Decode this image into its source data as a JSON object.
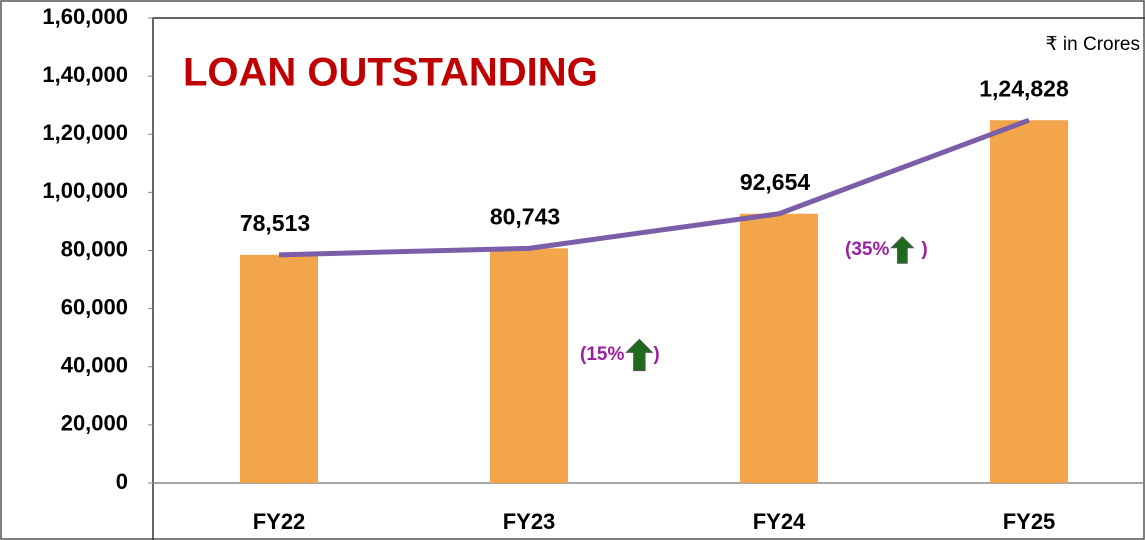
{
  "chart_data": {
    "type": "bar",
    "title": "LOAN OUTSTANDING",
    "unit_note": "₹ in Crores",
    "categories": [
      "FY22",
      "FY23",
      "FY24",
      "FY25"
    ],
    "values": [
      78513,
      80743,
      92654,
      124828
    ],
    "value_labels": [
      "78,513",
      "80,743",
      "92,654",
      "1,24,828"
    ],
    "color": "#f2a54a",
    "line_color": "#7b5ea7",
    "ylim": [
      0,
      160000
    ],
    "yticks": [
      0,
      {
        "value": 20000,
        "label": "20,000"
      },
      {
        "value": 40000,
        "label": "40,000"
      },
      {
        "value": 60000,
        "label": "60,000"
      },
      {
        "value": 80000,
        "label": "80,000"
      },
      {
        "value": 100000,
        "label": "1,00,000"
      },
      {
        "value": 120000,
        "label": "1,20,000"
      },
      {
        "value": 140000,
        "label": "1,40,000"
      },
      {
        "value": 160000,
        "label": "1,60,000"
      }
    ],
    "grid": false,
    "annotations": [
      {
        "before": "(15%",
        "after": ")"
      },
      {
        "before": "(35%",
        "after": ")"
      }
    ]
  }
}
